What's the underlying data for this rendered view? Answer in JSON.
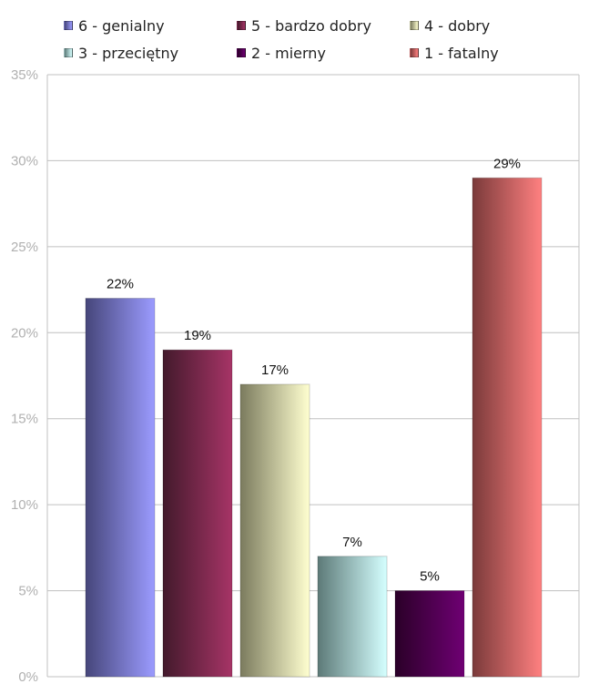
{
  "chart_data": {
    "type": "bar",
    "categories": [
      "6 - genialny",
      "5 - bardzo dobry",
      "4 - dobry",
      "3 - przeciętny",
      "2 - mierny",
      "1 - fatalny"
    ],
    "values": [
      22,
      19,
      17,
      7,
      5,
      29
    ],
    "value_labels": [
      "22%",
      "19%",
      "17%",
      "7%",
      "5%",
      "29%"
    ],
    "title": "",
    "xlabel": "",
    "ylabel": "",
    "ylim": [
      0,
      35
    ],
    "y_ticks": [
      0,
      5,
      10,
      15,
      20,
      25,
      30,
      35
    ],
    "y_tick_labels": [
      "0%",
      "5%",
      "10%",
      "15%",
      "20%",
      "25%",
      "30%",
      "35%"
    ],
    "grid": true,
    "legend_position": "top",
    "colors": [
      [
        "#46467a",
        "#9b9bff"
      ],
      [
        "#431a2c",
        "#a63466"
      ],
      [
        "#7b7b5e",
        "#ffffd0"
      ],
      [
        "#5d7a78",
        "#d5ffff"
      ],
      [
        "#2a0028",
        "#6f0073"
      ],
      [
        "#7a3a3a",
        "#ff8080"
      ]
    ]
  }
}
